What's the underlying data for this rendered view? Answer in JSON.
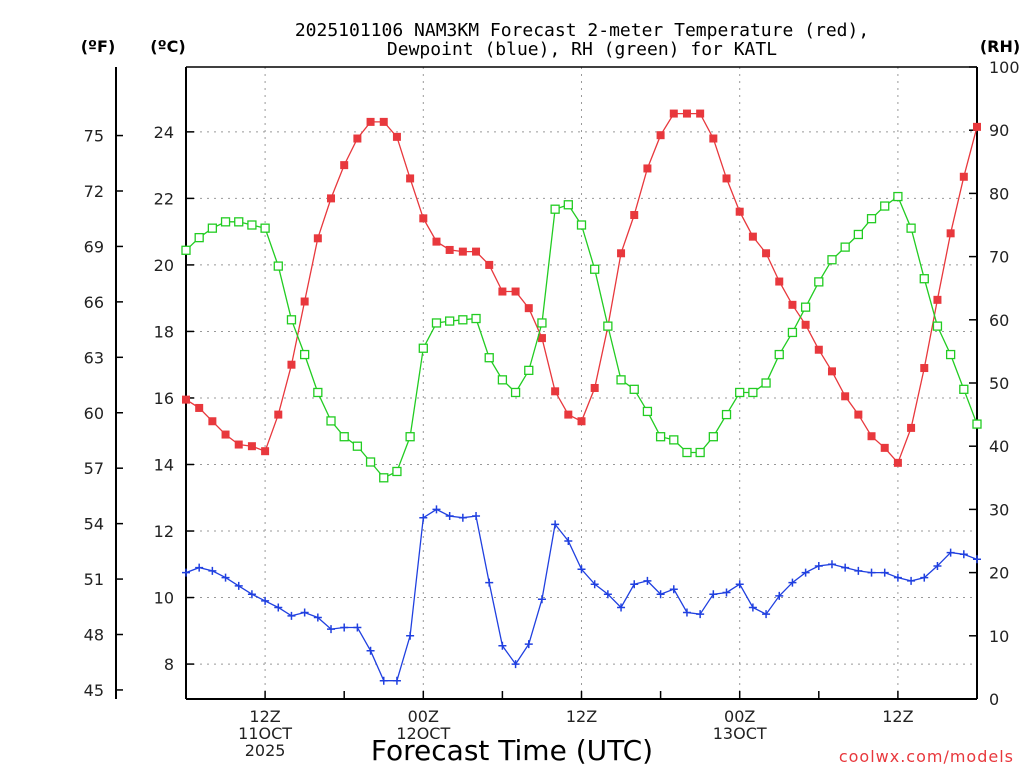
{
  "chart_data": {
    "type": "line",
    "title": [
      "2025101106 NAM3KM Forecast 2-meter Temperature (red),",
      "Dewpoint (blue), RH (green) for KATL"
    ],
    "xlabel": "Forecast Time (UTC)",
    "credit": "coolwx.com/models",
    "unit_labels": {
      "fahrenheit": "(ºF)",
      "celsius": "(ºC)",
      "rh": "(RH)"
    },
    "x_hours_range": [
      0,
      60
    ],
    "ylim_c": [
      6.95,
      25.95
    ],
    "ylim_rh": [
      0,
      100
    ],
    "yticks_c": [
      {
        "v": 8,
        "label": "8"
      },
      {
        "v": 10,
        "label": "10"
      },
      {
        "v": 12,
        "label": "12"
      },
      {
        "v": 14,
        "label": "14"
      },
      {
        "v": 16,
        "label": "16"
      },
      {
        "v": 18,
        "label": "18"
      },
      {
        "v": 20,
        "label": "20"
      },
      {
        "v": 22,
        "label": "22"
      },
      {
        "v": 24,
        "label": "24"
      }
    ],
    "yticks_f": [
      {
        "v": 45,
        "label": "45"
      },
      {
        "v": 48,
        "label": "48"
      },
      {
        "v": 51,
        "label": "51"
      },
      {
        "v": 54,
        "label": "54"
      },
      {
        "v": 57,
        "label": "57"
      },
      {
        "v": 60,
        "label": "60"
      },
      {
        "v": 63,
        "label": "63"
      },
      {
        "v": 66,
        "label": "66"
      },
      {
        "v": 69,
        "label": "69"
      },
      {
        "v": 72,
        "label": "72"
      },
      {
        "v": 75,
        "label": "75"
      }
    ],
    "yticks_rh": [
      {
        "v": 0,
        "label": "0"
      },
      {
        "v": 10,
        "label": "10"
      },
      {
        "v": 20,
        "label": "20"
      },
      {
        "v": 30,
        "label": "30"
      },
      {
        "v": 40,
        "label": "40"
      },
      {
        "v": 50,
        "label": "50"
      },
      {
        "v": 60,
        "label": "60"
      },
      {
        "v": 70,
        "label": "70"
      },
      {
        "v": 80,
        "label": "80"
      },
      {
        "v": 90,
        "label": "90"
      },
      {
        "v": 100,
        "label": "100"
      }
    ],
    "xticks": [
      {
        "hour": 6,
        "lines": [
          "12Z",
          "11OCT",
          "2025"
        ]
      },
      {
        "hour": 18,
        "lines": [
          "00Z",
          "12OCT"
        ]
      },
      {
        "hour": 30,
        "lines": [
          "12Z"
        ]
      },
      {
        "hour": 42,
        "lines": [
          "00Z",
          "13OCT"
        ]
      },
      {
        "hour": 54,
        "lines": [
          "12Z"
        ]
      }
    ],
    "series": [
      {
        "name": "Temperature",
        "unit": "C",
        "color": "#e8383d",
        "marker": "filled-square",
        "x": [
          0,
          1,
          2,
          3,
          4,
          5,
          6,
          7,
          8,
          9,
          10,
          11,
          12,
          13,
          14,
          15,
          16,
          17,
          18,
          19,
          20,
          21,
          22,
          23,
          24,
          25,
          26,
          27,
          28,
          29,
          30,
          31,
          32,
          33,
          34,
          35,
          36,
          37,
          38,
          39,
          40,
          41,
          42,
          43,
          44,
          45,
          46,
          47,
          48,
          49,
          50,
          51,
          52,
          53,
          54,
          55,
          56,
          57,
          58,
          59,
          60
        ],
        "values": [
          15.95,
          15.7,
          15.3,
          14.9,
          14.6,
          14.55,
          14.4,
          15.5,
          17.0,
          18.9,
          20.8,
          22.0,
          23.0,
          23.8,
          24.3,
          24.3,
          23.85,
          22.6,
          21.4,
          20.7,
          20.45,
          20.4,
          20.4,
          20.0,
          19.2,
          19.2,
          18.7,
          17.8,
          16.2,
          15.5,
          15.3,
          16.3,
          18.15,
          20.35,
          21.5,
          22.9,
          23.9,
          24.55,
          24.55,
          24.55,
          23.8,
          22.6,
          21.6,
          20.85,
          20.35,
          19.5,
          18.8,
          18.2,
          17.45,
          16.8,
          16.05,
          15.5,
          14.85,
          14.5,
          14.05,
          15.1,
          16.9,
          18.95,
          20.95,
          22.65,
          24.15
        ]
      },
      {
        "name": "Dewpoint",
        "unit": "C",
        "color": "#2040e0",
        "marker": "plus",
        "x": [
          0,
          1,
          2,
          3,
          4,
          5,
          6,
          7,
          8,
          9,
          10,
          11,
          12,
          13,
          14,
          15,
          16,
          17,
          18,
          19,
          20,
          21,
          22,
          23,
          24,
          25,
          26,
          27,
          28,
          29,
          30,
          31,
          32,
          33,
          34,
          35,
          36,
          37,
          38,
          39,
          40,
          41,
          42,
          43,
          44,
          45,
          46,
          47,
          48,
          49,
          50,
          51,
          52,
          53,
          54,
          55,
          56,
          57,
          58,
          59,
          60
        ],
        "values": [
          10.75,
          10.9,
          10.8,
          10.6,
          10.35,
          10.1,
          9.9,
          9.7,
          9.45,
          9.55,
          9.4,
          9.05,
          9.1,
          9.1,
          8.4,
          7.5,
          7.5,
          8.85,
          12.4,
          12.65,
          12.45,
          12.4,
          12.45,
          10.45,
          8.55,
          8.0,
          8.6,
          9.95,
          12.2,
          11.7,
          10.85,
          10.4,
          10.1,
          9.7,
          10.4,
          10.5,
          10.1,
          10.25,
          9.55,
          9.5,
          10.1,
          10.15,
          10.4,
          9.7,
          9.5,
          10.05,
          10.45,
          10.75,
          10.95,
          11.0,
          10.9,
          10.8,
          10.75,
          10.75,
          10.6,
          10.5,
          10.6,
          10.95,
          11.35,
          11.3,
          11.15
        ]
      },
      {
        "name": "RH",
        "unit": "%",
        "color": "#22cc22",
        "marker": "open-square",
        "x": [
          0,
          1,
          2,
          3,
          4,
          5,
          6,
          7,
          8,
          9,
          10,
          11,
          12,
          13,
          14,
          15,
          16,
          17,
          18,
          19,
          20,
          21,
          22,
          23,
          24,
          25,
          26,
          27,
          28,
          29,
          30,
          31,
          32,
          33,
          34,
          35,
          36,
          37,
          38,
          39,
          40,
          41,
          42,
          43,
          44,
          45,
          46,
          47,
          48,
          49,
          50,
          51,
          52,
          53,
          54,
          55,
          56,
          57,
          58,
          59,
          60
        ],
        "values": [
          71,
          73,
          74.5,
          75.5,
          75.5,
          75,
          74.5,
          68.5,
          60,
          54.5,
          48.5,
          44,
          41.5,
          40,
          37.5,
          35,
          36,
          41.5,
          55.5,
          59.5,
          59.8,
          60,
          60.2,
          54,
          50.5,
          48.5,
          52,
          59.5,
          77.5,
          78.2,
          75,
          68,
          59,
          50.5,
          49,
          45.5,
          41.5,
          41,
          39,
          39,
          41.5,
          45,
          48.5,
          48.5,
          50,
          54.5,
          58,
          62,
          66,
          69.5,
          71.5,
          73.5,
          76,
          78,
          79.5,
          74.5,
          66.5,
          59,
          54.5,
          49,
          43.5
        ]
      }
    ]
  }
}
